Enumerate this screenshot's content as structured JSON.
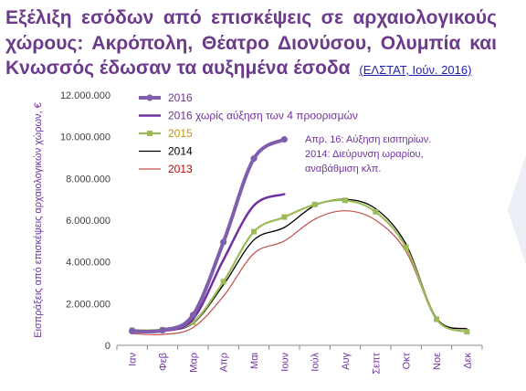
{
  "header": {
    "title": "Εξέλιξη εσόδων από επισκέψεις σε αρχαιολογικούς χώρους: Ακρόπολη, Θέατρο Διονύσου, Ολυμπία και Κνωσσός έδωσαν τα αυξημένα έσοδα",
    "source_link": "(ΕΛΣΤΑΤ, Ιούν. 2016)"
  },
  "colors": {
    "title": "#6b3a8a",
    "link": "#1f1fb0",
    "s2016": "#7f5fad",
    "s2016adj": "#7030a0",
    "s2015": "#9bbb59",
    "s2014": "#000000",
    "s2013": "#c0504d",
    "annotation": "#7030a0",
    "axis_labels": "#7030a0"
  },
  "chart_data": {
    "type": "line",
    "ylabel": "Εισπράξεις από επισκέψεις αρχαιολογικών χώρων, €",
    "ylim": [
      0,
      12000000
    ],
    "y_ticks": [
      0,
      2000000,
      4000000,
      6000000,
      8000000,
      10000000,
      12000000
    ],
    "y_tick_labels": [
      "0",
      "2.000.000",
      "4.000.000",
      "6.000.000",
      "8.000.000",
      "10.000.000",
      "12.000.000"
    ],
    "categories": [
      "Ιαν",
      "Φεβ",
      "Μαρ",
      "Απρ",
      "Μαι",
      "Ιουν",
      "Ιούλ",
      "Αυγ",
      "Σεπτ",
      "Οκτ",
      "Νοε",
      "Δεκ"
    ],
    "series": [
      {
        "name": "2016",
        "color_key": "s2016",
        "markers": "circle",
        "values": [
          680000,
          720000,
          1450000,
          4950000,
          8950000,
          9870000,
          null,
          null,
          null,
          null,
          null,
          null
        ]
      },
      {
        "name": "2016 χωρίς αύξηση των 4 προορισμών",
        "color_key": "s2016adj",
        "markers": "none",
        "values": [
          640000,
          680000,
          1250000,
          4100000,
          6700000,
          7250000,
          null,
          null,
          null,
          null,
          null,
          null
        ]
      },
      {
        "name": "2015",
        "color_key": "s2015",
        "markers": "square",
        "values": [
          730000,
          750000,
          1100000,
          3050000,
          5450000,
          6150000,
          6750000,
          6950000,
          6400000,
          4700000,
          1250000,
          650000
        ]
      },
      {
        "name": "2014",
        "color_key": "s2014",
        "markers": "none",
        "values": [
          620000,
          700000,
          1050000,
          2900000,
          5050000,
          5650000,
          6700000,
          7000000,
          6550000,
          4850000,
          1300000,
          780000
        ]
      },
      {
        "name": "2013",
        "color_key": "s2013",
        "markers": "none",
        "values": [
          560000,
          520000,
          850000,
          2350000,
          4400000,
          5000000,
          6050000,
          6450000,
          6000000,
          4500000,
          1250000,
          800000
        ]
      }
    ],
    "annotation": [
      "Απρ. 16: Αύξηση εισιτηρίων.",
      "2014: Διεύρυνση ωραρίου,",
      "αναβάθμιση κλπ."
    ],
    "legend_position": "top-left",
    "grid": false
  }
}
